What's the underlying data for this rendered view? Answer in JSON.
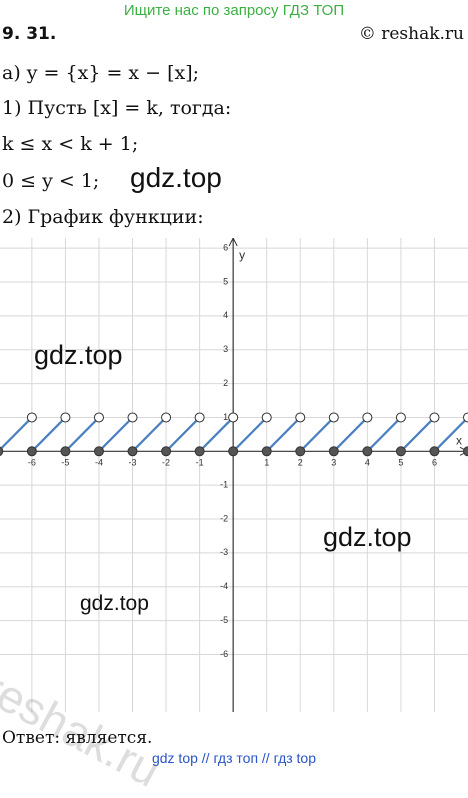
{
  "header": {
    "banner": "Ищите нас по запросу ГДЗ ТОП",
    "number": "9. 31.",
    "site": "© reshak.ru"
  },
  "lines": [
    "а) y = {x} = x − [x];",
    "1) Пусть [x] = k, тогда:",
    "k ≤ x < k + 1;",
    "0 ≤ y < 1;",
    "2) График функции:"
  ],
  "watermarks": [
    "gdz.top",
    "gdz.top",
    "gdz.top",
    "gdz.top",
    "reshak.ru"
  ],
  "graph": {
    "x_label": "x",
    "y_label": "y",
    "xlim": [
      -6.95,
      7
    ],
    "ylim": [
      -7.7,
      6.3
    ],
    "xticks": [
      -6,
      -5,
      -4,
      -3,
      -2,
      -1,
      1,
      2,
      3,
      4,
      5,
      6
    ],
    "yticks": [
      -6,
      -5,
      -4,
      -3,
      -2,
      -1,
      1,
      2,
      3,
      4,
      5,
      6
    ]
  },
  "answer": "Ответ: является.",
  "footer": "gdz top  //  гдз топ  //  гдз top"
}
